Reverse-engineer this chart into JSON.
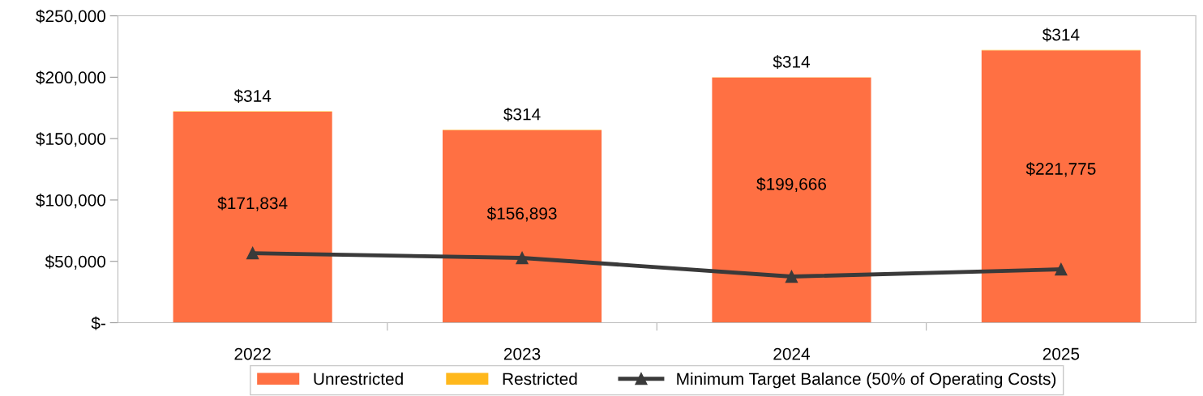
{
  "chart_data": {
    "type": "bar",
    "stacked": true,
    "categories": [
      "2022",
      "2023",
      "2024",
      "2025"
    ],
    "series": [
      {
        "name": "Unrestricted",
        "color": "#ff7043",
        "values": [
          171834,
          156893,
          199666,
          221775
        ],
        "value_labels": [
          "$171,834",
          "$156,893",
          "$199,666",
          "$221,775"
        ]
      },
      {
        "name": "Restricted",
        "color": "#ffb81c",
        "values": [
          314,
          314,
          314,
          314
        ],
        "value_labels": [
          "$314",
          "$314",
          "$314",
          "$314"
        ]
      },
      {
        "name": "Minimum Target Balance (50% of Operating Costs)",
        "type": "line",
        "color": "#3a3a3a",
        "marker": "triangle",
        "values": [
          56700,
          52800,
          37600,
          43500
        ]
      }
    ],
    "ylim": [
      0,
      250000
    ],
    "yticks": [
      {
        "value": 0,
        "label": "$-"
      },
      {
        "value": 50000,
        "label": "$50,000"
      },
      {
        "value": 100000,
        "label": "$100,000"
      },
      {
        "value": 150000,
        "label": "$150,000"
      },
      {
        "value": 200000,
        "label": "$200,000"
      },
      {
        "value": 250000,
        "label": "$250,000"
      }
    ],
    "grid": false,
    "legend": "bottom"
  }
}
